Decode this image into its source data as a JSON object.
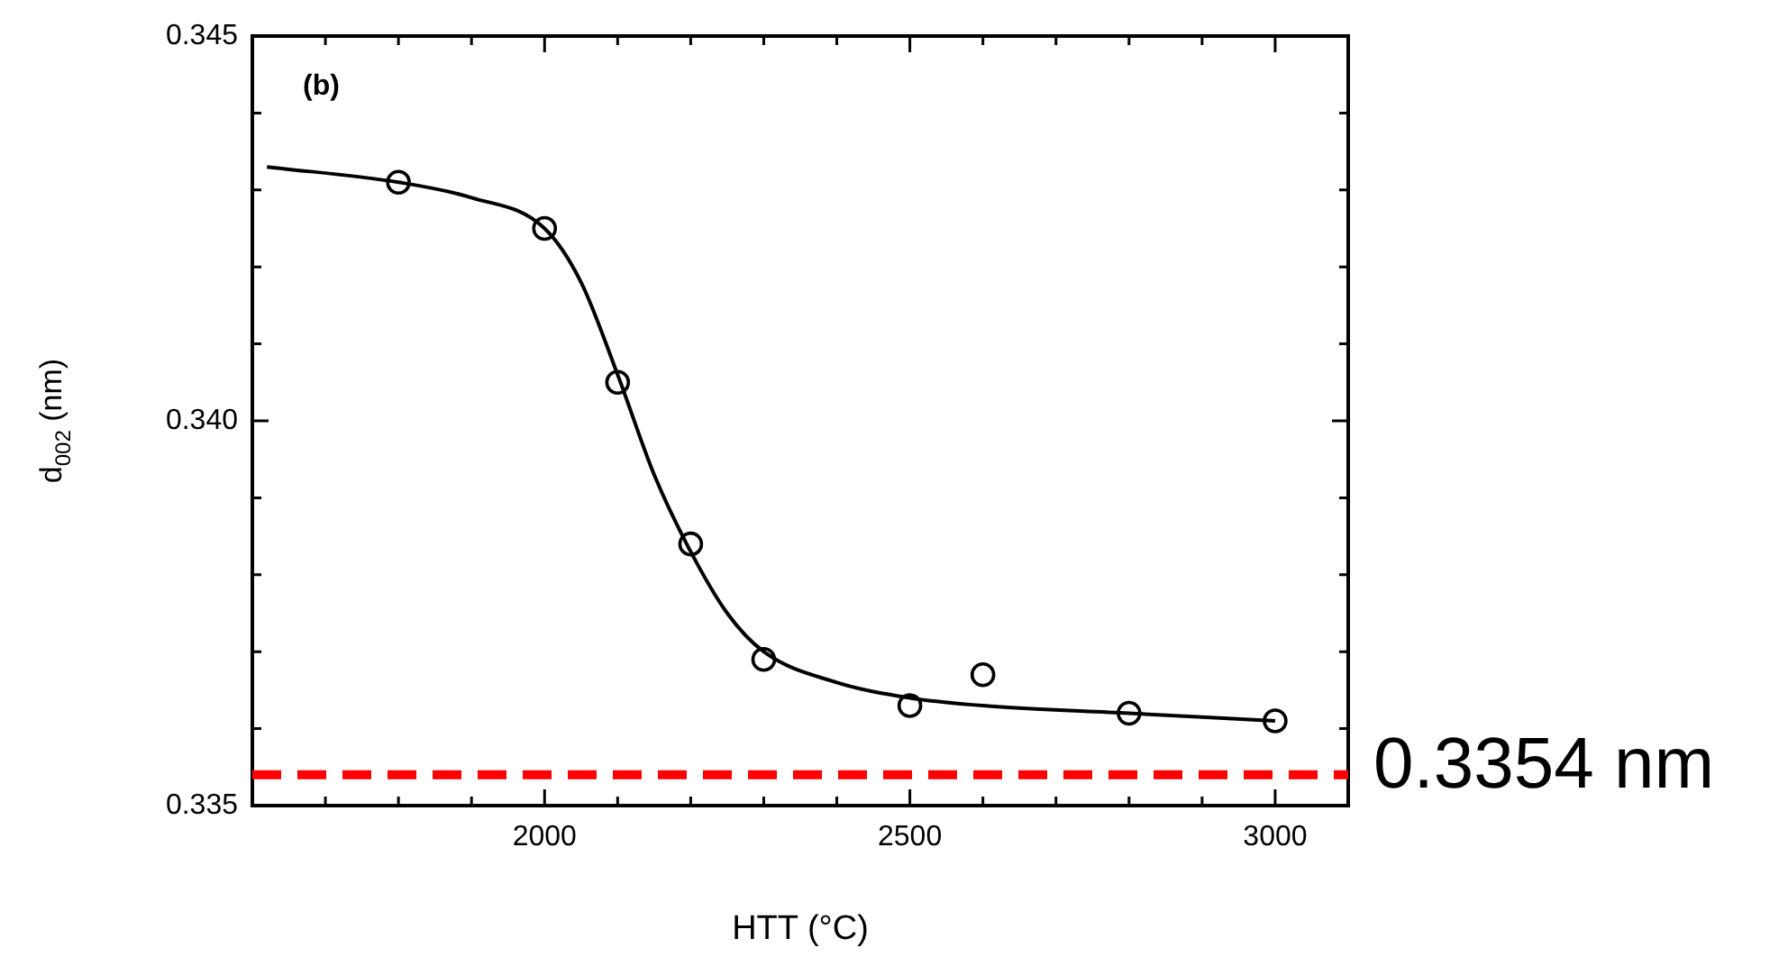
{
  "chart_data": {
    "type": "scatter",
    "xlabel": "HTT (°C)",
    "ylabel": "d$_{002}$ (nm)",
    "annotations": [
      "(b)"
    ],
    "xlim": [
      1600,
      3100
    ],
    "ylim": [
      0.335,
      0.345
    ],
    "xticks": [
      {
        "value": 1700,
        "label": null
      },
      {
        "value": 1800,
        "label": null
      },
      {
        "value": 1900,
        "label": null
      },
      2000,
      {
        "value": 2100,
        "label": null
      },
      {
        "value": 2200,
        "label": null
      },
      {
        "value": 2300,
        "label": null
      },
      {
        "value": 2400,
        "label": null
      },
      2500,
      {
        "value": 2600,
        "label": null
      },
      {
        "value": 2700,
        "label": null
      },
      {
        "value": 2800,
        "label": null
      },
      {
        "value": 2900,
        "label": null
      },
      3000
    ],
    "yticks": [
      0.335,
      {
        "value": 0.336,
        "label": null
      },
      {
        "value": 0.337,
        "label": null
      },
      {
        "value": 0.338,
        "label": null
      },
      {
        "value": 0.339,
        "label": null
      },
      {
        "value": 0.34,
        "label": "0.340"
      },
      {
        "value": 0.341,
        "label": null
      },
      {
        "value": 0.342,
        "label": null
      },
      {
        "value": 0.343,
        "label": null
      },
      {
        "value": 0.344,
        "label": null
      },
      0.345
    ],
    "series": [
      {
        "type": "line",
        "color": "#000000",
        "marker": "none",
        "x": [
          1620,
          1800,
          1900,
          2000,
          2050,
          2100,
          2150,
          2200,
          2250,
          2300,
          2400,
          2500,
          2600,
          2800,
          3000
        ],
        "values": [
          0.3433,
          0.3431,
          0.3429,
          0.3425,
          0.3418,
          0.3406,
          0.3393,
          0.3383,
          0.3375,
          0.337,
          0.3366,
          0.3364,
          0.3363,
          0.3362,
          0.3361
        ]
      },
      {
        "color": "#000000",
        "x": [
          1800,
          2000,
          2100,
          2200,
          2300,
          2500,
          2600,
          2800,
          3000
        ],
        "values": [
          0.3431,
          0.3425,
          0.3405,
          0.3384,
          0.3369,
          0.3363,
          0.3367,
          0.3362,
          0.3361
        ]
      }
    ],
    "ref_lines": [
      {
        "axis": "y",
        "value": 0.3354,
        "label": "0.3354 nm",
        "color": "#ff0000",
        "line_style": "dashed"
      }
    ],
    "marker": "circle",
    "grid": false,
    "legend": false
  }
}
